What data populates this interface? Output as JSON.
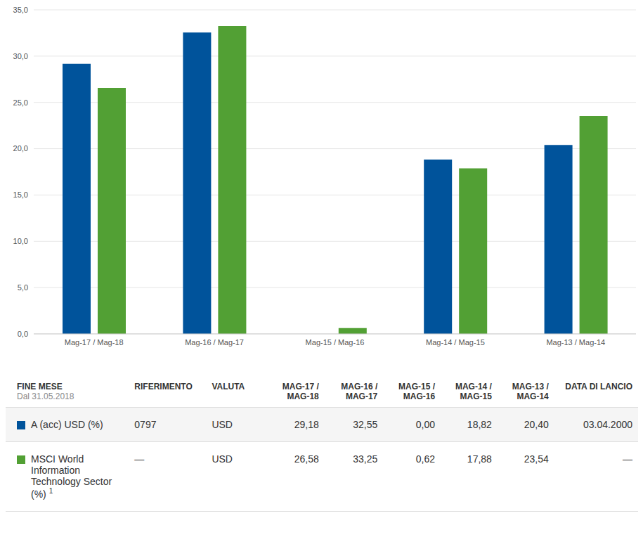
{
  "chart_data": {
    "type": "bar",
    "categories": [
      "Mag-17 / Mag-18",
      "Mag-16 / Mag-17",
      "Mag-15 / Mag-16",
      "Mag-14 / Mag-15",
      "Mag-13 / Mag-14"
    ],
    "series": [
      {
        "name": "A (acc) USD (%)",
        "color": "#00539b",
        "values": [
          29.18,
          32.55,
          0.0,
          18.82,
          20.4
        ]
      },
      {
        "name": "MSCI World Information Technology Sector (%)",
        "color": "#52a034",
        "values": [
          26.58,
          33.25,
          0.62,
          17.88,
          23.54
        ]
      }
    ],
    "ylim": [
      0,
      35
    ],
    "yticks": [
      {
        "value": 0,
        "label": "0,0"
      },
      {
        "value": 5,
        "label": "5,0"
      },
      {
        "value": 10,
        "label": "10,0"
      },
      {
        "value": 15,
        "label": "15,0"
      },
      {
        "value": 20,
        "label": "20,0"
      },
      {
        "value": 25,
        "label": "25,0"
      },
      {
        "value": 30,
        "label": "30,0"
      },
      {
        "value": 35,
        "label": "35,0"
      }
    ],
    "grid": true
  },
  "table": {
    "header": {
      "title": "FINE MESE",
      "subtitle": "Dal 31.05.2018",
      "columns": [
        "RIFERIMENTO",
        "VALUTA",
        "MAG-17 / MAG-18",
        "MAG-16 / MAG-17",
        "MAG-15 / MAG-16",
        "MAG-14 / MAG-15",
        "MAG-13 / MAG-14",
        "DATA DI LANCIO"
      ]
    },
    "rows": [
      {
        "cells": [
          "0797",
          "USD",
          "29,18",
          "32,55",
          "0,00",
          "18,82",
          "20,40",
          "03.04.2000"
        ]
      },
      {
        "cells": [
          "—",
          "USD",
          "26,58",
          "33,25",
          "0,62",
          "17,88",
          "23,54",
          "—"
        ],
        "note": "1"
      }
    ]
  }
}
